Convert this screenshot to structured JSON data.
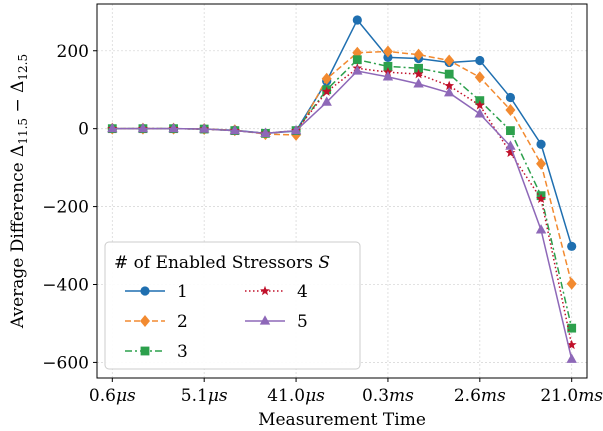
{
  "chart_data": {
    "type": "line",
    "title": "",
    "xlabel": "Measurement Time",
    "ylabel": "Average Difference Δ",
    "ylabel_sub1": "11.5",
    "ylabel_minus": " − Δ",
    "ylabel_sub2": "12.5",
    "x_tick_labels": [
      {
        "num": "0.6",
        "unit": "μs",
        "index": 0
      },
      {
        "num": "5.1",
        "unit": "μs",
        "index": 3
      },
      {
        "num": "41.0",
        "unit": "μs",
        "index": 6
      },
      {
        "num": "0.3",
        "unit": "ms",
        "index": 9
      },
      {
        "num": "2.6",
        "unit": "ms",
        "index": 12
      },
      {
        "num": "21.0",
        "unit": "ms",
        "index": 15
      }
    ],
    "y_ticks": [
      200,
      0,
      -200,
      -400,
      -600
    ],
    "y_tick_labels": [
      "200",
      "0",
      "−200",
      "−400",
      "−600"
    ],
    "ylim": [
      -640,
      320
    ],
    "xlim": [
      -0.5,
      15.5
    ],
    "grid": true,
    "legend": {
      "title": "# of Enabled Stressors ",
      "title_var": "S",
      "placement": "lower-left"
    },
    "x": [
      0,
      1,
      2,
      3,
      4,
      5,
      6,
      7,
      8,
      9,
      10,
      11,
      12,
      13,
      14,
      15
    ],
    "series": [
      {
        "name": "1",
        "color": "#1f6fb0",
        "linestyle": "solid",
        "marker": "circle",
        "values": [
          0,
          0,
          0,
          -1,
          -4,
          -12,
          -6,
          122,
          279,
          183,
          180,
          170,
          175,
          80,
          -40,
          -302
        ]
      },
      {
        "name": "2",
        "color": "#f28a30",
        "linestyle": "dashed",
        "marker": "diamond",
        "values": [
          0,
          0,
          0,
          -1,
          -4,
          -14,
          -16,
          128,
          195,
          198,
          190,
          175,
          132,
          48,
          -90,
          -398
        ]
      },
      {
        "name": "3",
        "color": "#2ca04c",
        "linestyle": "dashdot",
        "marker": "square",
        "values": [
          0,
          0,
          0,
          -1,
          -5,
          -12,
          -5,
          100,
          177,
          160,
          155,
          140,
          72,
          -5,
          -172,
          -512
        ]
      },
      {
        "name": "4",
        "color": "#c0102a",
        "linestyle": "dotted",
        "marker": "star",
        "values": [
          0,
          0,
          0,
          -1,
          -5,
          -12,
          -5,
          95,
          155,
          145,
          140,
          110,
          60,
          -62,
          -180,
          -555
        ]
      },
      {
        "name": "5",
        "color": "#8e68b8",
        "linestyle": "solid",
        "marker": "triangle",
        "values": [
          0,
          0,
          0,
          -1,
          -5,
          -12,
          -5,
          68,
          148,
          133,
          115,
          92,
          38,
          -45,
          -260,
          -592
        ]
      }
    ]
  }
}
